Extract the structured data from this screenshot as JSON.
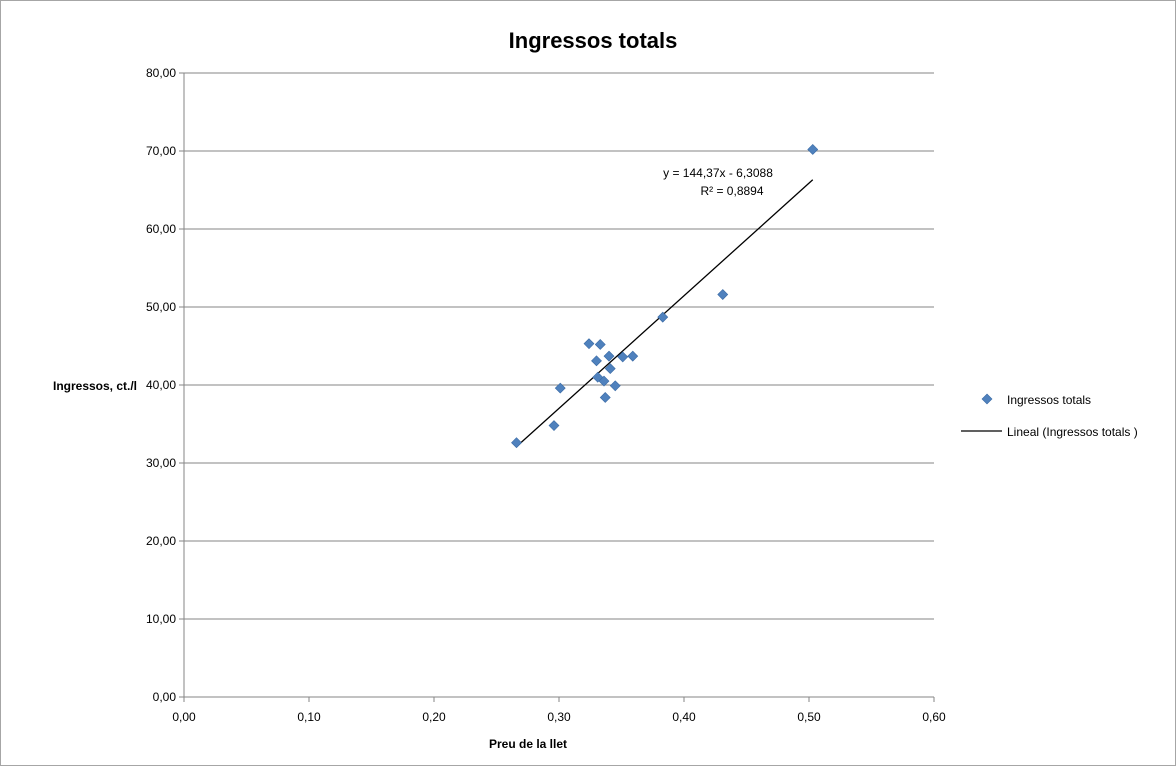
{
  "chart_data": {
    "type": "scatter",
    "title": "Ingressos totals",
    "xlabel": "Preu de la llet",
    "ylabel": "Ingressos, ct./l",
    "xlim": [
      0,
      0.6
    ],
    "ylim": [
      0,
      80
    ],
    "x_ticks": [
      "0,00",
      "0,10",
      "0,20",
      "0,30",
      "0,40",
      "0,50",
      "0,60"
    ],
    "y_ticks": [
      "0,00",
      "10,00",
      "20,00",
      "30,00",
      "40,00",
      "50,00",
      "60,00",
      "70,00",
      "80,00"
    ],
    "grid": "horizontal",
    "legend_position": "right",
    "series": [
      {
        "name": "Ingressos totals",
        "marker": "diamond",
        "color": "#4f81bd",
        "points": [
          {
            "x": 0.266,
            "y": 32.6
          },
          {
            "x": 0.296,
            "y": 34.8
          },
          {
            "x": 0.301,
            "y": 39.6
          },
          {
            "x": 0.324,
            "y": 45.3
          },
          {
            "x": 0.33,
            "y": 43.1
          },
          {
            "x": 0.331,
            "y": 41.0
          },
          {
            "x": 0.333,
            "y": 45.2
          },
          {
            "x": 0.336,
            "y": 40.5
          },
          {
            "x": 0.337,
            "y": 38.4
          },
          {
            "x": 0.34,
            "y": 43.7
          },
          {
            "x": 0.341,
            "y": 42.1
          },
          {
            "x": 0.345,
            "y": 39.9
          },
          {
            "x": 0.351,
            "y": 43.6
          },
          {
            "x": 0.359,
            "y": 43.7
          },
          {
            "x": 0.383,
            "y": 48.7
          },
          {
            "x": 0.431,
            "y": 51.6
          },
          {
            "x": 0.503,
            "y": 70.2
          }
        ]
      }
    ],
    "trendline": {
      "name": "Lineal (Ingressos totals )",
      "type": "linear",
      "slope": 144.37,
      "intercept": -6.3088,
      "x_range": [
        0.266,
        0.503
      ],
      "equation_text": "y = 144,37x - 6,3088",
      "r2_text": "R² = 0,8894",
      "color": "#000000"
    }
  }
}
